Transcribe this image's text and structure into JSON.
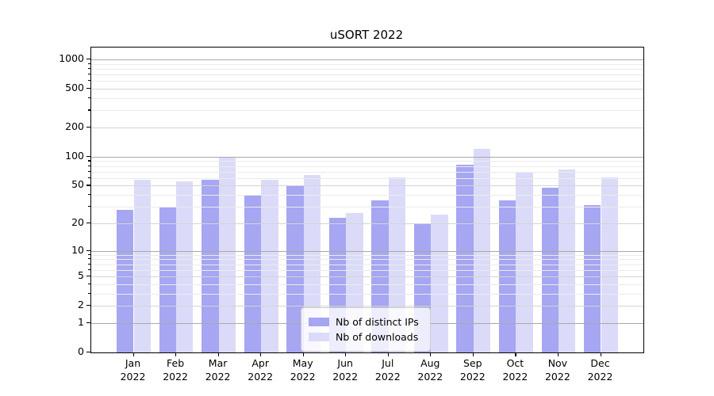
{
  "title": "uSORT 2022",
  "colors": {
    "distinct_ips_bar": "#a6a6f2",
    "downloads_bar": "#dbdbf9"
  },
  "legend": {
    "items": [
      {
        "label": "Nb of distinct IPs",
        "color": "#a6a6f2"
      },
      {
        "label": "Nb of downloads",
        "color": "#dbdbf9"
      }
    ]
  },
  "y_axis": {
    "tick_labels": [
      "0",
      "1",
      "2",
      "5",
      "10",
      "20",
      "50",
      "100",
      "200",
      "500",
      "1000"
    ],
    "tick_values": [
      0,
      1,
      2,
      5,
      10,
      20,
      50,
      100,
      200,
      500,
      1000
    ]
  },
  "x_axis": {
    "months": [
      "Jan",
      "Feb",
      "Mar",
      "Apr",
      "May",
      "Jun",
      "Jul",
      "Aug",
      "Sep",
      "Oct",
      "Nov",
      "Dec"
    ],
    "year": "2022"
  },
  "chart_data": {
    "type": "bar",
    "title": "uSORT 2022",
    "categories": [
      "Jan 2022",
      "Feb 2022",
      "Mar 2022",
      "Apr 2022",
      "May 2022",
      "Jun 2022",
      "Jul 2022",
      "Aug 2022",
      "Sep 2022",
      "Oct 2022",
      "Nov 2022",
      "Dec 2022"
    ],
    "series": [
      {
        "name": "Nb of distinct IPs",
        "color": "#a6a6f2",
        "values": [
          28,
          30,
          58,
          39,
          50,
          23,
          35,
          20,
          83,
          35,
          48,
          31
        ]
      },
      {
        "name": "Nb of downloads",
        "color": "#dbdbf9",
        "values": [
          58,
          56,
          100,
          58,
          65,
          26,
          61,
          25,
          120,
          70,
          74,
          61
        ]
      }
    ],
    "xlabel": "",
    "ylabel": "",
    "yscale": "log(1+v)",
    "ylim": [
      0,
      1320
    ],
    "yticks": [
      0,
      1,
      2,
      5,
      10,
      20,
      50,
      100,
      200,
      500,
      1000
    ],
    "grid": true,
    "grid_above_bars": true,
    "legend_position": "lower center inside plot"
  }
}
